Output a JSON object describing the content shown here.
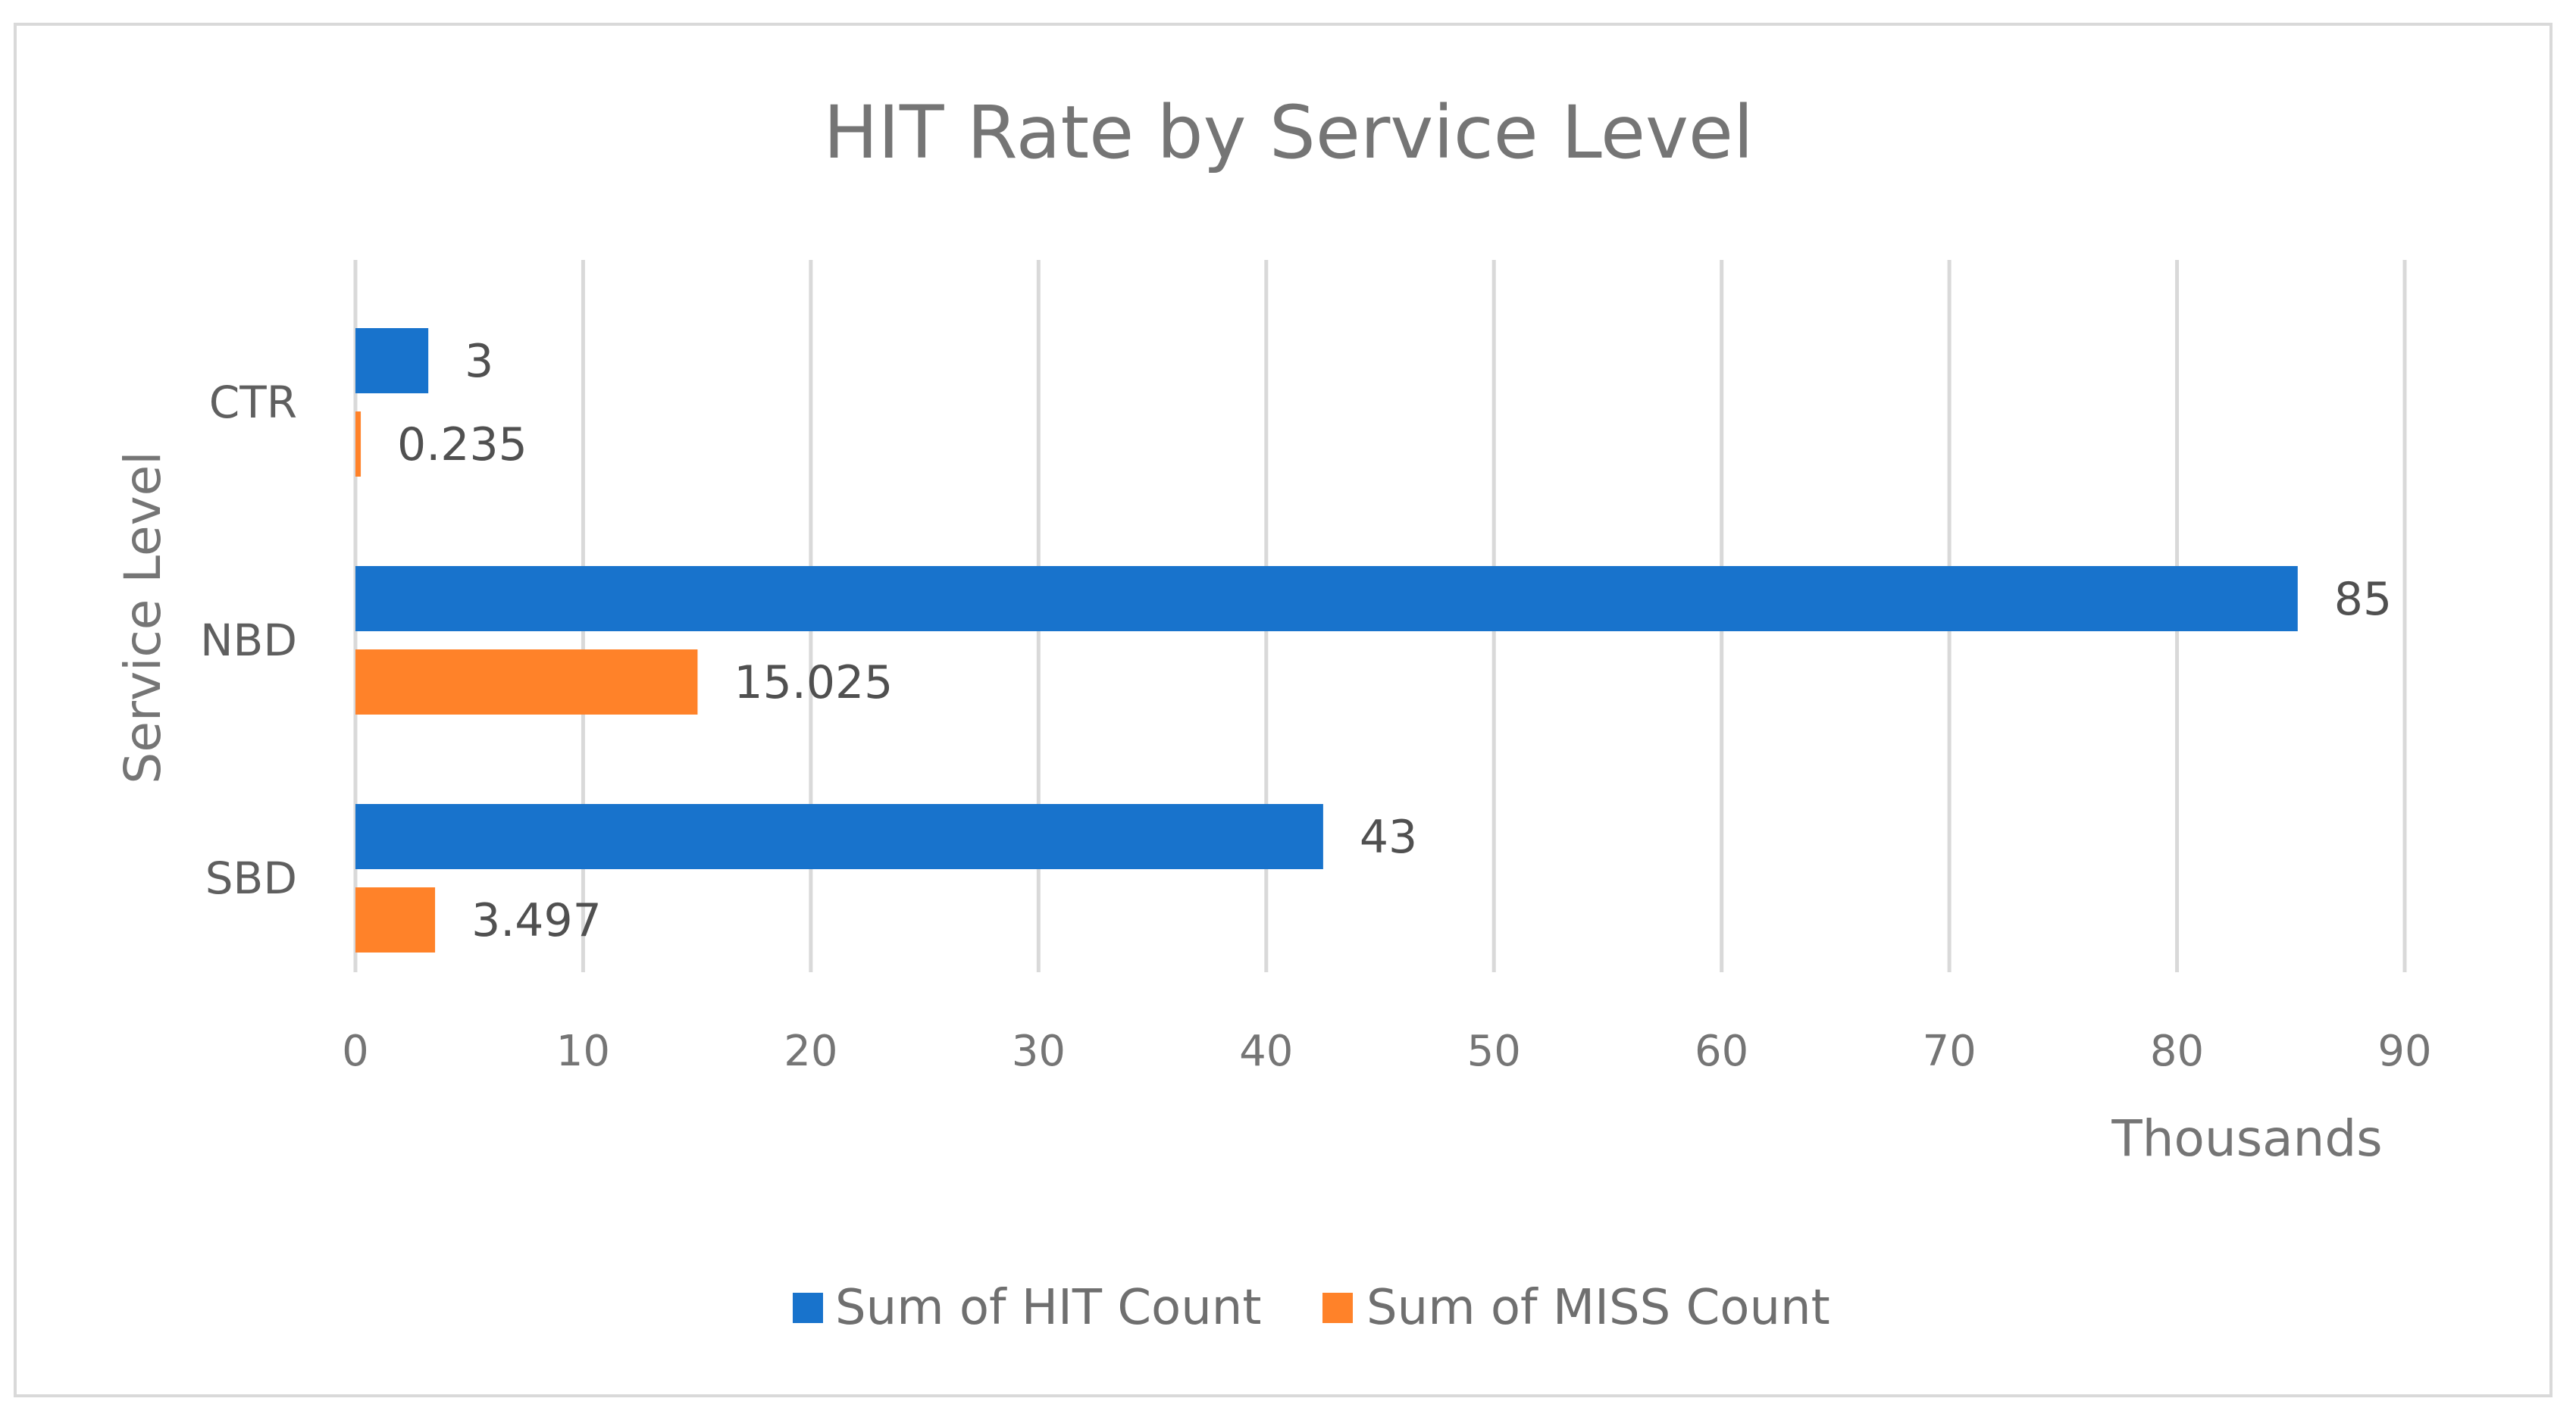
{
  "chart_data": {
    "type": "bar",
    "orientation": "horizontal",
    "title": "HIT Rate by Service Level",
    "xlabel": "Thousands",
    "ylabel": "Service Level",
    "xlim": [
      0,
      90
    ],
    "x_ticks": [
      0,
      10,
      20,
      30,
      40,
      50,
      60,
      70,
      80,
      90
    ],
    "x_tick_labels": [
      "0",
      "10",
      "20",
      "30",
      "40",
      "50",
      "60",
      "70",
      "80",
      "90"
    ],
    "grid": true,
    "categories": [
      "CTR",
      "NBD",
      "SBD"
    ],
    "series": [
      {
        "name": "Sum of HIT Count",
        "color": "#1873CC",
        "values": [
          3.2,
          85.3,
          42.5
        ],
        "labels": [
          "3",
          "85",
          "43"
        ]
      },
      {
        "name": "Sum of MISS Count",
        "color": "#FF8229",
        "values": [
          0.235,
          15.025,
          3.497
        ],
        "labels": [
          "0.235",
          "15.025",
          "3.497"
        ]
      }
    ],
    "legend_position": "bottom"
  }
}
